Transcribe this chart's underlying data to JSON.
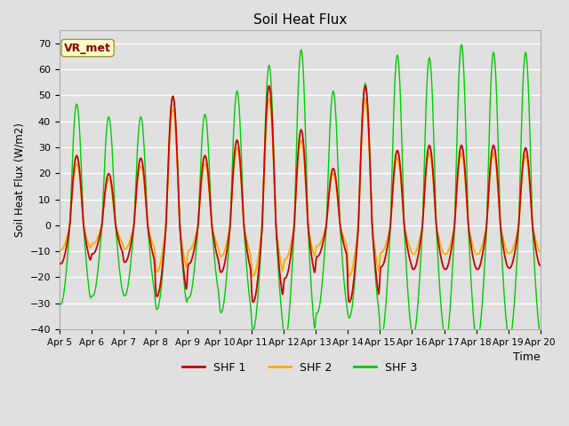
{
  "title": "Soil Heat Flux",
  "xlabel": "Time",
  "ylabel": "Soil Heat Flux (W/m2)",
  "ylim": [
    -40,
    75
  ],
  "yticks": [
    -40,
    -30,
    -20,
    -10,
    0,
    10,
    20,
    30,
    40,
    50,
    60,
    70
  ],
  "x_tick_labels": [
    "Apr 5",
    "Apr 6",
    "Apr 7",
    "Apr 8",
    "Apr 9",
    "Apr 10",
    "Apr 11",
    "Apr 12",
    "Apr 13",
    "Apr 14",
    "Apr 15",
    "Apr 16",
    "Apr 17",
    "Apr 18",
    "Apr 19",
    "Apr 20"
  ],
  "colors": {
    "SHF1": "#cc0000",
    "SHF2": "#ffaa00",
    "SHF3": "#00cc00"
  },
  "legend_label": "VR_met",
  "legend_entries": [
    "SHF 1",
    "SHF 2",
    "SHF 3"
  ],
  "bg_color": "#e0e0e0",
  "grid_color": "white",
  "day_amps1": [
    27,
    20,
    26,
    50,
    27,
    33,
    54,
    37,
    22,
    54,
    29,
    31,
    31,
    31,
    30
  ],
  "day_amps2": [
    24,
    18,
    23,
    45,
    24,
    30,
    49,
    33,
    20,
    49,
    26,
    28,
    28,
    28,
    27
  ],
  "day_amps3": [
    47,
    42,
    42,
    50,
    43,
    52,
    62,
    68,
    52,
    55,
    66,
    65,
    70,
    67,
    67
  ],
  "night_ratio1": 0.55,
  "night_ratio2": 0.4,
  "night_ratio3": 0.65
}
